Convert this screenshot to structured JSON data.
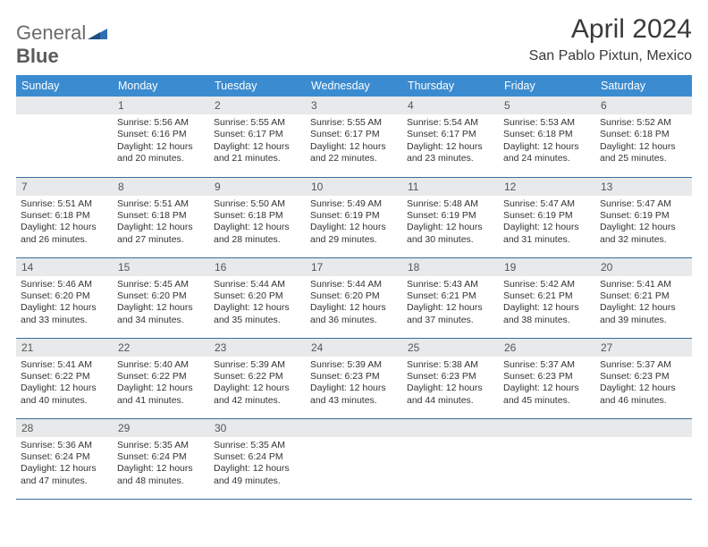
{
  "logo": {
    "word1": "General",
    "word2": "Blue",
    "icon_color": "#2f6fb3"
  },
  "title": "April 2024",
  "location": "San Pablo Pixtun, Mexico",
  "colors": {
    "header_bg": "#3b8bd0",
    "header_text": "#ffffff",
    "daynum_bg": "#e7e9ea",
    "row_border": "#3b6d9c",
    "body_text": "#333333"
  },
  "weekdays": [
    "Sunday",
    "Monday",
    "Tuesday",
    "Wednesday",
    "Thursday",
    "Friday",
    "Saturday"
  ],
  "weeks": [
    [
      {
        "n": "",
        "sr": "",
        "ss": "",
        "dl": ""
      },
      {
        "n": "1",
        "sr": "Sunrise: 5:56 AM",
        "ss": "Sunset: 6:16 PM",
        "dl": "Daylight: 12 hours and 20 minutes."
      },
      {
        "n": "2",
        "sr": "Sunrise: 5:55 AM",
        "ss": "Sunset: 6:17 PM",
        "dl": "Daylight: 12 hours and 21 minutes."
      },
      {
        "n": "3",
        "sr": "Sunrise: 5:55 AM",
        "ss": "Sunset: 6:17 PM",
        "dl": "Daylight: 12 hours and 22 minutes."
      },
      {
        "n": "4",
        "sr": "Sunrise: 5:54 AM",
        "ss": "Sunset: 6:17 PM",
        "dl": "Daylight: 12 hours and 23 minutes."
      },
      {
        "n": "5",
        "sr": "Sunrise: 5:53 AM",
        "ss": "Sunset: 6:18 PM",
        "dl": "Daylight: 12 hours and 24 minutes."
      },
      {
        "n": "6",
        "sr": "Sunrise: 5:52 AM",
        "ss": "Sunset: 6:18 PM",
        "dl": "Daylight: 12 hours and 25 minutes."
      }
    ],
    [
      {
        "n": "7",
        "sr": "Sunrise: 5:51 AM",
        "ss": "Sunset: 6:18 PM",
        "dl": "Daylight: 12 hours and 26 minutes."
      },
      {
        "n": "8",
        "sr": "Sunrise: 5:51 AM",
        "ss": "Sunset: 6:18 PM",
        "dl": "Daylight: 12 hours and 27 minutes."
      },
      {
        "n": "9",
        "sr": "Sunrise: 5:50 AM",
        "ss": "Sunset: 6:18 PM",
        "dl": "Daylight: 12 hours and 28 minutes."
      },
      {
        "n": "10",
        "sr": "Sunrise: 5:49 AM",
        "ss": "Sunset: 6:19 PM",
        "dl": "Daylight: 12 hours and 29 minutes."
      },
      {
        "n": "11",
        "sr": "Sunrise: 5:48 AM",
        "ss": "Sunset: 6:19 PM",
        "dl": "Daylight: 12 hours and 30 minutes."
      },
      {
        "n": "12",
        "sr": "Sunrise: 5:47 AM",
        "ss": "Sunset: 6:19 PM",
        "dl": "Daylight: 12 hours and 31 minutes."
      },
      {
        "n": "13",
        "sr": "Sunrise: 5:47 AM",
        "ss": "Sunset: 6:19 PM",
        "dl": "Daylight: 12 hours and 32 minutes."
      }
    ],
    [
      {
        "n": "14",
        "sr": "Sunrise: 5:46 AM",
        "ss": "Sunset: 6:20 PM",
        "dl": "Daylight: 12 hours and 33 minutes."
      },
      {
        "n": "15",
        "sr": "Sunrise: 5:45 AM",
        "ss": "Sunset: 6:20 PM",
        "dl": "Daylight: 12 hours and 34 minutes."
      },
      {
        "n": "16",
        "sr": "Sunrise: 5:44 AM",
        "ss": "Sunset: 6:20 PM",
        "dl": "Daylight: 12 hours and 35 minutes."
      },
      {
        "n": "17",
        "sr": "Sunrise: 5:44 AM",
        "ss": "Sunset: 6:20 PM",
        "dl": "Daylight: 12 hours and 36 minutes."
      },
      {
        "n": "18",
        "sr": "Sunrise: 5:43 AM",
        "ss": "Sunset: 6:21 PM",
        "dl": "Daylight: 12 hours and 37 minutes."
      },
      {
        "n": "19",
        "sr": "Sunrise: 5:42 AM",
        "ss": "Sunset: 6:21 PM",
        "dl": "Daylight: 12 hours and 38 minutes."
      },
      {
        "n": "20",
        "sr": "Sunrise: 5:41 AM",
        "ss": "Sunset: 6:21 PM",
        "dl": "Daylight: 12 hours and 39 minutes."
      }
    ],
    [
      {
        "n": "21",
        "sr": "Sunrise: 5:41 AM",
        "ss": "Sunset: 6:22 PM",
        "dl": "Daylight: 12 hours and 40 minutes."
      },
      {
        "n": "22",
        "sr": "Sunrise: 5:40 AM",
        "ss": "Sunset: 6:22 PM",
        "dl": "Daylight: 12 hours and 41 minutes."
      },
      {
        "n": "23",
        "sr": "Sunrise: 5:39 AM",
        "ss": "Sunset: 6:22 PM",
        "dl": "Daylight: 12 hours and 42 minutes."
      },
      {
        "n": "24",
        "sr": "Sunrise: 5:39 AM",
        "ss": "Sunset: 6:23 PM",
        "dl": "Daylight: 12 hours and 43 minutes."
      },
      {
        "n": "25",
        "sr": "Sunrise: 5:38 AM",
        "ss": "Sunset: 6:23 PM",
        "dl": "Daylight: 12 hours and 44 minutes."
      },
      {
        "n": "26",
        "sr": "Sunrise: 5:37 AM",
        "ss": "Sunset: 6:23 PM",
        "dl": "Daylight: 12 hours and 45 minutes."
      },
      {
        "n": "27",
        "sr": "Sunrise: 5:37 AM",
        "ss": "Sunset: 6:23 PM",
        "dl": "Daylight: 12 hours and 46 minutes."
      }
    ],
    [
      {
        "n": "28",
        "sr": "Sunrise: 5:36 AM",
        "ss": "Sunset: 6:24 PM",
        "dl": "Daylight: 12 hours and 47 minutes."
      },
      {
        "n": "29",
        "sr": "Sunrise: 5:35 AM",
        "ss": "Sunset: 6:24 PM",
        "dl": "Daylight: 12 hours and 48 minutes."
      },
      {
        "n": "30",
        "sr": "Sunrise: 5:35 AM",
        "ss": "Sunset: 6:24 PM",
        "dl": "Daylight: 12 hours and 49 minutes."
      },
      {
        "n": "",
        "sr": "",
        "ss": "",
        "dl": ""
      },
      {
        "n": "",
        "sr": "",
        "ss": "",
        "dl": ""
      },
      {
        "n": "",
        "sr": "",
        "ss": "",
        "dl": ""
      },
      {
        "n": "",
        "sr": "",
        "ss": "",
        "dl": ""
      }
    ]
  ]
}
